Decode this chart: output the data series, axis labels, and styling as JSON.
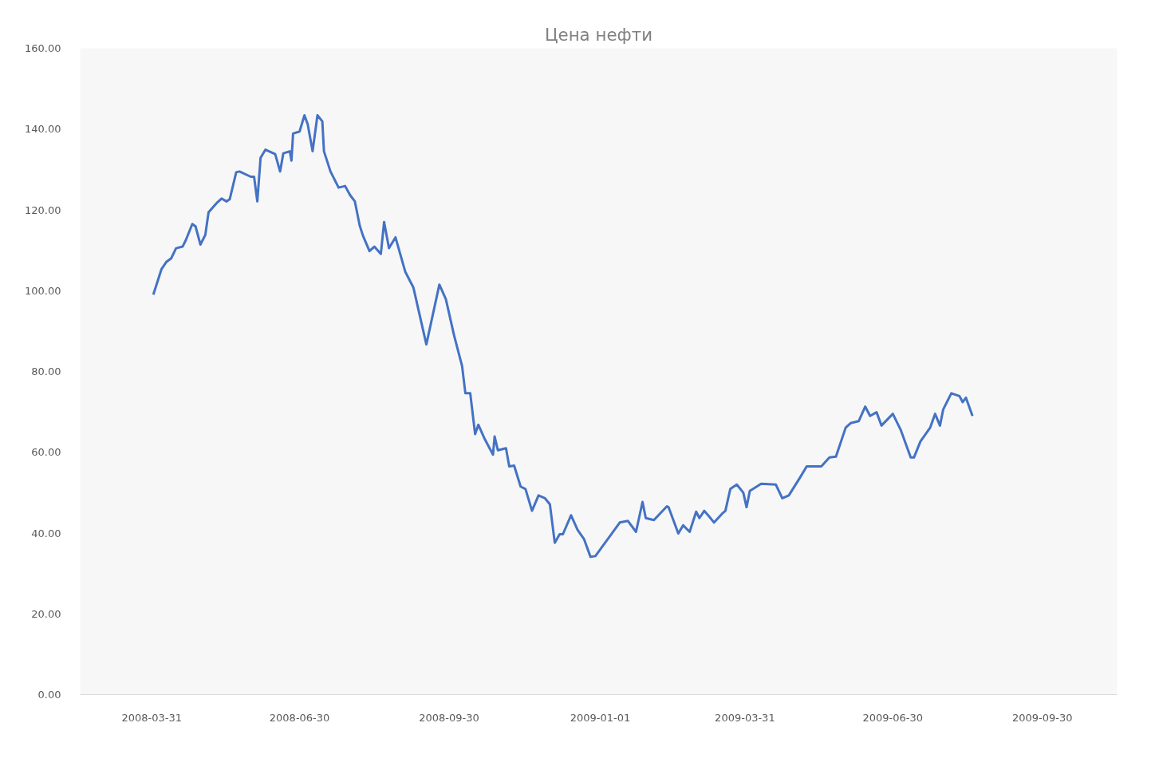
{
  "chart_data": {
    "type": "line",
    "title": "Цена нефти",
    "x": [
      "2008-04-01",
      "2008-04-06",
      "2008-04-09",
      "2008-04-12",
      "2008-04-15",
      "2008-04-19",
      "2008-04-21",
      "2008-04-25",
      "2008-04-27",
      "2008-04-30",
      "2008-05-03",
      "2008-05-05",
      "2008-05-10",
      "2008-05-13",
      "2008-05-16",
      "2008-05-18",
      "2008-05-22",
      "2008-05-24",
      "2008-05-31",
      "2008-06-02",
      "2008-06-04",
      "2008-06-06",
      "2008-06-09",
      "2008-06-15",
      "2008-06-18",
      "2008-06-20",
      "2008-06-24",
      "2008-06-25",
      "2008-06-26",
      "2008-06-30",
      "2008-07-03",
      "2008-07-05",
      "2008-07-08",
      "2008-07-11",
      "2008-07-14",
      "2008-07-15",
      "2008-07-19",
      "2008-07-24",
      "2008-07-28",
      "2008-07-31",
      "2008-08-03",
      "2008-08-06",
      "2008-08-08",
      "2008-08-12",
      "2008-08-15",
      "2008-08-19",
      "2008-08-21",
      "2008-08-24",
      "2008-08-28",
      "2008-09-03",
      "2008-09-08",
      "2008-09-16",
      "2008-09-24",
      "2008-09-28",
      "2008-10-03",
      "2008-10-08",
      "2008-10-10",
      "2008-10-13",
      "2008-10-16",
      "2008-10-18",
      "2008-10-22",
      "2008-10-27",
      "2008-10-28",
      "2008-10-30",
      "2008-11-04",
      "2008-11-06",
      "2008-11-09",
      "2008-11-13",
      "2008-11-16",
      "2008-11-20",
      "2008-11-24",
      "2008-11-28",
      "2008-12-01",
      "2008-12-04",
      "2008-12-07",
      "2008-12-09",
      "2008-12-14",
      "2008-12-18",
      "2008-12-22",
      "2008-12-26",
      "2008-12-29",
      "2009-01-13",
      "2009-01-18",
      "2009-01-23",
      "2009-01-27",
      "2009-01-29",
      "2009-02-03",
      "2009-02-11",
      "2009-02-12",
      "2009-02-18",
      "2009-02-21",
      "2009-02-25",
      "2009-03-01",
      "2009-03-03",
      "2009-03-06",
      "2009-03-09",
      "2009-03-12",
      "2009-03-17",
      "2009-03-19",
      "2009-03-22",
      "2009-03-26",
      "2009-03-30",
      "2009-04-01",
      "2009-04-03",
      "2009-04-10",
      "2009-04-19",
      "2009-04-23",
      "2009-04-27",
      "2009-05-04",
      "2009-05-08",
      "2009-05-17",
      "2009-05-22",
      "2009-05-26",
      "2009-06-01",
      "2009-06-04",
      "2009-06-09",
      "2009-06-13",
      "2009-06-16",
      "2009-06-20",
      "2009-06-23",
      "2009-06-30",
      "2009-07-05",
      "2009-07-11",
      "2009-07-13",
      "2009-07-17",
      "2009-07-23",
      "2009-07-26",
      "2009-07-29",
      "2009-07-31",
      "2009-08-05",
      "2009-08-10",
      "2009-08-12",
      "2009-08-14",
      "2009-08-18"
    ],
    "series": [
      {
        "color": "#4472c4",
        "values": [
          99.0,
          105.3,
          107.1,
          108.0,
          110.5,
          110.9,
          112.5,
          116.5,
          115.9,
          111.4,
          113.8,
          119.4,
          121.7,
          122.8,
          122.1,
          122.6,
          129.3,
          129.5,
          128.2,
          128.2,
          122.1,
          132.9,
          134.9,
          133.8,
          129.5,
          134.0,
          134.5,
          132.2,
          138.9,
          139.4,
          143.4,
          141.2,
          134.5,
          143.4,
          141.9,
          134.5,
          129.5,
          125.5,
          125.9,
          123.7,
          122.1,
          116.1,
          113.6,
          109.8,
          110.9,
          109.1,
          117.0,
          110.5,
          113.2,
          104.7,
          100.8,
          86.7,
          101.5,
          97.9,
          89.0,
          81.3,
          74.6,
          74.6,
          64.5,
          66.8,
          63.2,
          59.4,
          63.9,
          60.5,
          61.0,
          56.5,
          56.7,
          51.5,
          50.9,
          45.5,
          49.3,
          48.6,
          47.1,
          37.6,
          39.7,
          39.7,
          44.4,
          40.8,
          38.5,
          34.1,
          34.3,
          42.6,
          43.0,
          40.3,
          47.7,
          43.7,
          43.2,
          46.6,
          46.4,
          39.9,
          41.9,
          40.3,
          45.3,
          43.7,
          45.5,
          44.1,
          42.6,
          44.8,
          45.5,
          50.9,
          52.0,
          50.0,
          46.4,
          50.4,
          52.2,
          52.0,
          48.6,
          49.3,
          53.8,
          56.5,
          56.5,
          58.7,
          58.9,
          66.1,
          67.2,
          67.7,
          71.3,
          69.0,
          69.9,
          66.6,
          69.5,
          65.4,
          58.7,
          58.7,
          62.7,
          66.1,
          69.5,
          66.6,
          70.6,
          74.6,
          73.9,
          72.4,
          73.5,
          69.0
        ]
      }
    ],
    "xlim": [
      "2008-02-16",
      "2009-11-15"
    ],
    "xticks": [
      "2008-03-31",
      "2008-06-30",
      "2008-09-30",
      "2009-01-01",
      "2009-03-31",
      "2009-06-30",
      "2009-09-30"
    ],
    "ylim": [
      0,
      160
    ],
    "yticks": [
      {
        "value": 0,
        "label": "0.00"
      },
      {
        "value": 20,
        "label": "20.00"
      },
      {
        "value": 40,
        "label": "40.00"
      },
      {
        "value": 60,
        "label": "60.00"
      },
      {
        "value": 80,
        "label": "80.00"
      },
      {
        "value": 100,
        "label": "100.00"
      },
      {
        "value": 120,
        "label": "120.00"
      },
      {
        "value": 140,
        "label": "140.00"
      },
      {
        "value": 160,
        "label": "160.00"
      }
    ],
    "line_style": "solid"
  }
}
